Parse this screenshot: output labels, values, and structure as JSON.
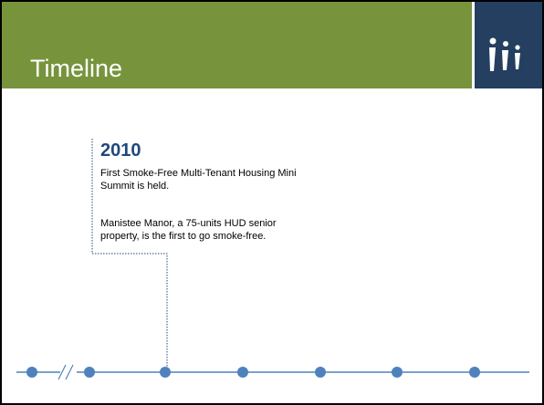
{
  "header": {
    "title": "Timeline"
  },
  "content": {
    "year": "2010",
    "paragraphs": [
      [
        "First Smoke-Free Multi-Tenant Housing Mini",
        "Summit is held."
      ],
      [
        "Manistee Manor, a 75-units HUD senior",
        "property, is the first to go smoke-free."
      ]
    ]
  }
}
